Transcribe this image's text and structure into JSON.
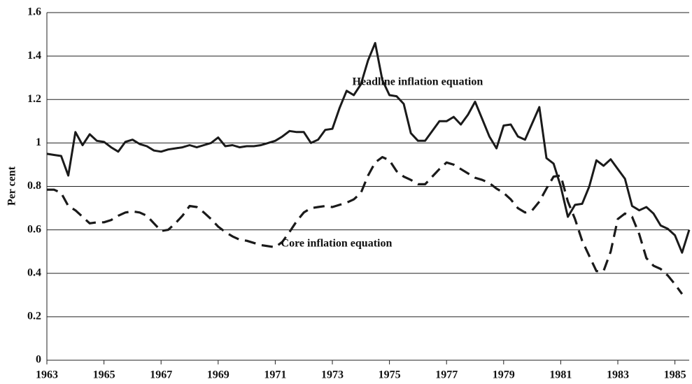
{
  "chart_data": {
    "type": "line",
    "y_label": "Per cent",
    "annotations": [
      "Headline inflation equation",
      "Core inflation equation"
    ],
    "x": [
      1963,
      1963.25,
      1963.5,
      1963.75,
      1964,
      1964.25,
      1964.5,
      1964.75,
      1965,
      1965.25,
      1965.5,
      1965.75,
      1966,
      1966.25,
      1966.5,
      1966.75,
      1967,
      1967.25,
      1967.5,
      1967.75,
      1968,
      1968.25,
      1968.5,
      1968.75,
      1969,
      1969.25,
      1969.5,
      1969.75,
      1970,
      1970.25,
      1970.5,
      1970.75,
      1971,
      1971.25,
      1971.5,
      1971.75,
      1972,
      1972.25,
      1972.5,
      1972.75,
      1973,
      1973.25,
      1973.5,
      1973.75,
      1974,
      1974.25,
      1974.5,
      1974.75,
      1975,
      1975.25,
      1975.5,
      1975.75,
      1976,
      1976.25,
      1976.5,
      1976.75,
      1977,
      1977.25,
      1977.5,
      1977.75,
      1978,
      1978.25,
      1978.5,
      1978.75,
      1979,
      1979.25,
      1979.5,
      1979.75,
      1980,
      1980.25,
      1980.5,
      1980.75,
      1981,
      1981.25,
      1981.5,
      1981.75,
      1982,
      1982.25,
      1982.5,
      1982.75,
      1983,
      1983.25,
      1983.5,
      1983.75,
      1984,
      1984.25,
      1984.5,
      1984.75,
      1985,
      1985.25,
      1985.5
    ],
    "series": [
      {
        "name": "Headline inflation equation",
        "color": "#1a1a1a",
        "dashed": false,
        "values": [
          0.95,
          0.945,
          0.94,
          0.85,
          1.05,
          0.99,
          1.04,
          1.01,
          1.005,
          0.98,
          0.96,
          1.005,
          1.015,
          0.995,
          0.985,
          0.965,
          0.96,
          0.97,
          0.975,
          0.98,
          0.99,
          0.98,
          0.99,
          1.0,
          1.025,
          0.985,
          0.99,
          0.98,
          0.985,
          0.985,
          0.99,
          1.0,
          1.01,
          1.03,
          1.055,
          1.05,
          1.05,
          1.0,
          1.015,
          1.06,
          1.065,
          1.16,
          1.24,
          1.22,
          1.27,
          1.38,
          1.46,
          1.29,
          1.22,
          1.215,
          1.18,
          1.045,
          1.01,
          1.01,
          1.055,
          1.1,
          1.1,
          1.12,
          1.085,
          1.13,
          1.19,
          1.11,
          1.03,
          0.975,
          1.08,
          1.085,
          1.03,
          1.015,
          1.09,
          1.165,
          0.93,
          0.905,
          0.8,
          0.66,
          0.715,
          0.72,
          0.8,
          0.92,
          0.895,
          0.925,
          0.88,
          0.835,
          0.71,
          0.69,
          0.705,
          0.675,
          0.62,
          0.605,
          0.575,
          0.495,
          0.6
        ]
      },
      {
        "name": "Core inflation equation",
        "color": "#1a1a1a",
        "dashed": true,
        "values": [
          0.785,
          0.785,
          0.77,
          0.71,
          0.69,
          0.66,
          0.63,
          0.635,
          0.635,
          0.645,
          0.665,
          0.68,
          0.685,
          0.68,
          0.665,
          0.63,
          0.595,
          0.6,
          0.63,
          0.665,
          0.71,
          0.705,
          0.68,
          0.65,
          0.615,
          0.59,
          0.57,
          0.555,
          0.55,
          0.54,
          0.53,
          0.525,
          0.52,
          0.545,
          0.59,
          0.64,
          0.68,
          0.7,
          0.705,
          0.71,
          0.705,
          0.715,
          0.725,
          0.74,
          0.77,
          0.85,
          0.91,
          0.935,
          0.92,
          0.87,
          0.845,
          0.83,
          0.81,
          0.81,
          0.845,
          0.88,
          0.91,
          0.9,
          0.88,
          0.86,
          0.84,
          0.83,
          0.815,
          0.79,
          0.77,
          0.74,
          0.7,
          0.68,
          0.69,
          0.73,
          0.79,
          0.845,
          0.85,
          0.73,
          0.65,
          0.55,
          0.48,
          0.41,
          0.41,
          0.5,
          0.65,
          0.675,
          0.66,
          0.58,
          0.47,
          0.435,
          0.42,
          0.39,
          0.35,
          0.305,
          null
        ]
      }
    ],
    "xlim": [
      1963,
      1985.5
    ],
    "xticks": [
      1963,
      1965,
      1967,
      1969,
      1971,
      1973,
      1975,
      1977,
      1979,
      1981,
      1983,
      1985
    ],
    "ylim": [
      0,
      1.6
    ],
    "yticks": [
      0,
      0.2,
      0.4,
      0.6,
      0.8,
      1,
      1.2,
      1.4,
      1.6
    ],
    "grid": true
  }
}
